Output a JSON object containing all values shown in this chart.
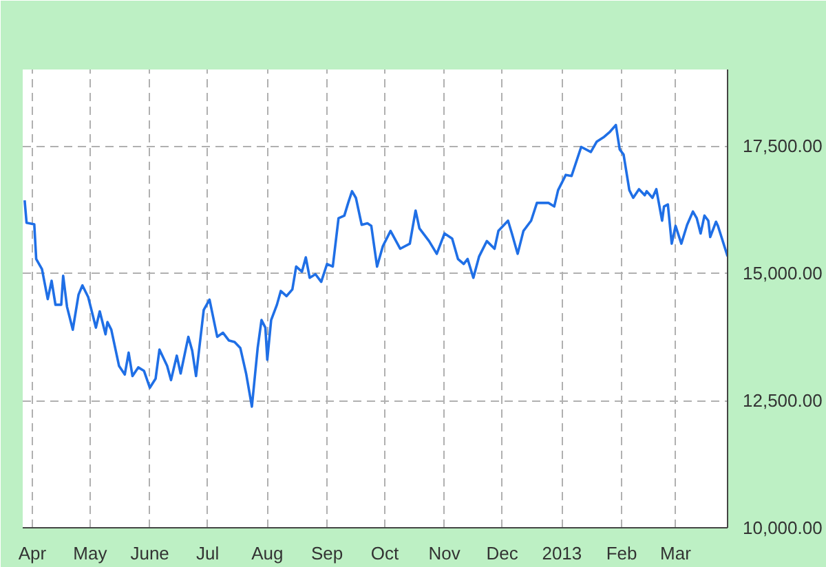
{
  "chart_data": {
    "type": "line",
    "x": [
      "2012-03-28",
      "2012-03-29",
      "2012-04-02",
      "2012-04-03",
      "2012-04-06",
      "2012-04-09",
      "2012-04-11",
      "2012-04-13",
      "2012-04-16",
      "2012-04-17",
      "2012-04-19",
      "2012-04-22",
      "2012-04-25",
      "2012-04-27",
      "2012-04-30",
      "2012-05-04",
      "2012-05-06",
      "2012-05-09",
      "2012-05-10",
      "2012-05-12",
      "2012-05-16",
      "2012-05-19",
      "2012-05-21",
      "2012-05-23",
      "2012-05-26",
      "2012-05-29",
      "2012-06-01",
      "2012-06-04",
      "2012-06-06",
      "2012-06-10",
      "2012-06-12",
      "2012-06-15",
      "2012-06-17",
      "2012-06-21",
      "2012-06-23",
      "2012-06-25",
      "2012-06-29",
      "2012-07-02",
      "2012-07-06",
      "2012-07-09",
      "2012-07-12",
      "2012-07-15",
      "2012-07-18",
      "2012-07-21",
      "2012-07-24",
      "2012-07-27",
      "2012-07-29",
      "2012-07-31",
      "2012-08-01",
      "2012-08-03",
      "2012-08-06",
      "2012-08-08",
      "2012-08-11",
      "2012-08-14",
      "2012-08-16",
      "2012-08-19",
      "2012-08-21",
      "2012-08-23",
      "2012-08-26",
      "2012-08-29",
      "2012-09-01",
      "2012-09-04",
      "2012-09-07",
      "2012-09-10",
      "2012-09-12",
      "2012-09-14",
      "2012-09-16",
      "2012-09-19",
      "2012-09-22",
      "2012-09-24",
      "2012-09-27",
      "2012-09-30",
      "2012-10-04",
      "2012-10-09",
      "2012-10-14",
      "2012-10-17",
      "2012-10-19",
      "2012-10-24",
      "2012-10-28",
      "2012-11-01",
      "2012-11-05",
      "2012-11-08",
      "2012-11-11",
      "2012-11-13",
      "2012-11-16",
      "2012-11-19",
      "2012-11-23",
      "2012-11-27",
      "2012-11-29",
      "2012-12-04",
      "2012-12-06",
      "2012-12-09",
      "2012-12-12",
      "2012-12-16",
      "2012-12-19",
      "2012-12-25",
      "2012-12-28",
      "2012-12-30",
      "2013-01-03",
      "2013-01-06",
      "2013-01-11",
      "2013-01-16",
      "2013-01-19",
      "2013-01-23",
      "2013-01-26",
      "2013-01-29",
      "2013-01-31",
      "2013-02-02",
      "2013-02-05",
      "2013-02-07",
      "2013-02-10",
      "2013-02-13",
      "2013-02-14",
      "2013-02-17",
      "2013-02-19",
      "2013-02-22",
      "2013-02-23",
      "2013-02-25",
      "2013-02-27",
      "2013-03-01",
      "2013-03-04",
      "2013-03-07",
      "2013-03-10",
      "2013-03-12",
      "2013-03-14",
      "2013-03-16",
      "2013-03-18",
      "2013-03-19",
      "2013-03-22",
      "2013-03-23",
      "2013-03-28"
    ],
    "series": [
      {
        "color": "#1f6fe6",
        "values": [
          16430,
          15990,
          15960,
          15280,
          15080,
          14490,
          14850,
          14380,
          14380,
          14950,
          14340,
          13890,
          14580,
          14760,
          14530,
          13930,
          14250,
          13800,
          14040,
          13890,
          13180,
          13010,
          13440,
          12980,
          13150,
          13080,
          12750,
          12930,
          13500,
          13180,
          12900,
          13380,
          13030,
          13750,
          13480,
          12980,
          14280,
          14480,
          13750,
          13830,
          13680,
          13650,
          13530,
          13030,
          12380,
          13530,
          14080,
          13930,
          13300,
          14080,
          14380,
          14650,
          14550,
          14680,
          15130,
          15030,
          15310,
          14910,
          14980,
          14830,
          15180,
          15130,
          16080,
          16130,
          16380,
          16610,
          16480,
          15950,
          15980,
          15930,
          15130,
          15530,
          15830,
          15480,
          15580,
          16230,
          15880,
          15630,
          15380,
          15780,
          15680,
          15280,
          15180,
          15280,
          14910,
          15330,
          15630,
          15480,
          15830,
          16030,
          15780,
          15380,
          15830,
          16030,
          16380,
          16380,
          16310,
          16630,
          16930,
          16910,
          17480,
          17380,
          17580,
          17680,
          17780,
          17910,
          17430,
          17330,
          16630,
          16480,
          16650,
          16530,
          16610,
          16480,
          16650,
          16030,
          16310,
          16350,
          15580,
          15930,
          15580,
          15950,
          16210,
          16080,
          15780,
          16130,
          16030,
          15710,
          16010,
          15930,
          15330
        ]
      }
    ],
    "xlim": [
      "2012-03-27",
      "2013-03-28"
    ],
    "xticks": [
      {
        "value": "2012-04-01",
        "label": "Apr"
      },
      {
        "value": "2012-05-01",
        "label": "May"
      },
      {
        "value": "2012-06-01",
        "label": "June"
      },
      {
        "value": "2012-07-01",
        "label": "Jul"
      },
      {
        "value": "2012-08-01",
        "label": "Aug"
      },
      {
        "value": "2012-09-01",
        "label": "Sep"
      },
      {
        "value": "2012-10-01",
        "label": "Oct"
      },
      {
        "value": "2012-11-01",
        "label": "Nov"
      },
      {
        "value": "2012-12-01",
        "label": "Dec"
      },
      {
        "value": "2013-01-01",
        "label": "2013"
      },
      {
        "value": "2013-02-01",
        "label": "Feb"
      },
      {
        "value": "2013-03-01",
        "label": "Mar"
      }
    ],
    "ylim": [
      10000,
      19000
    ],
    "yticks": [
      {
        "value": 10000,
        "label": "10,000.00"
      },
      {
        "value": 12500,
        "label": "12,500.00"
      },
      {
        "value": 15000,
        "label": "15,000.00"
      },
      {
        "value": 17500,
        "label": "17,500.00"
      }
    ],
    "grid": true
  }
}
